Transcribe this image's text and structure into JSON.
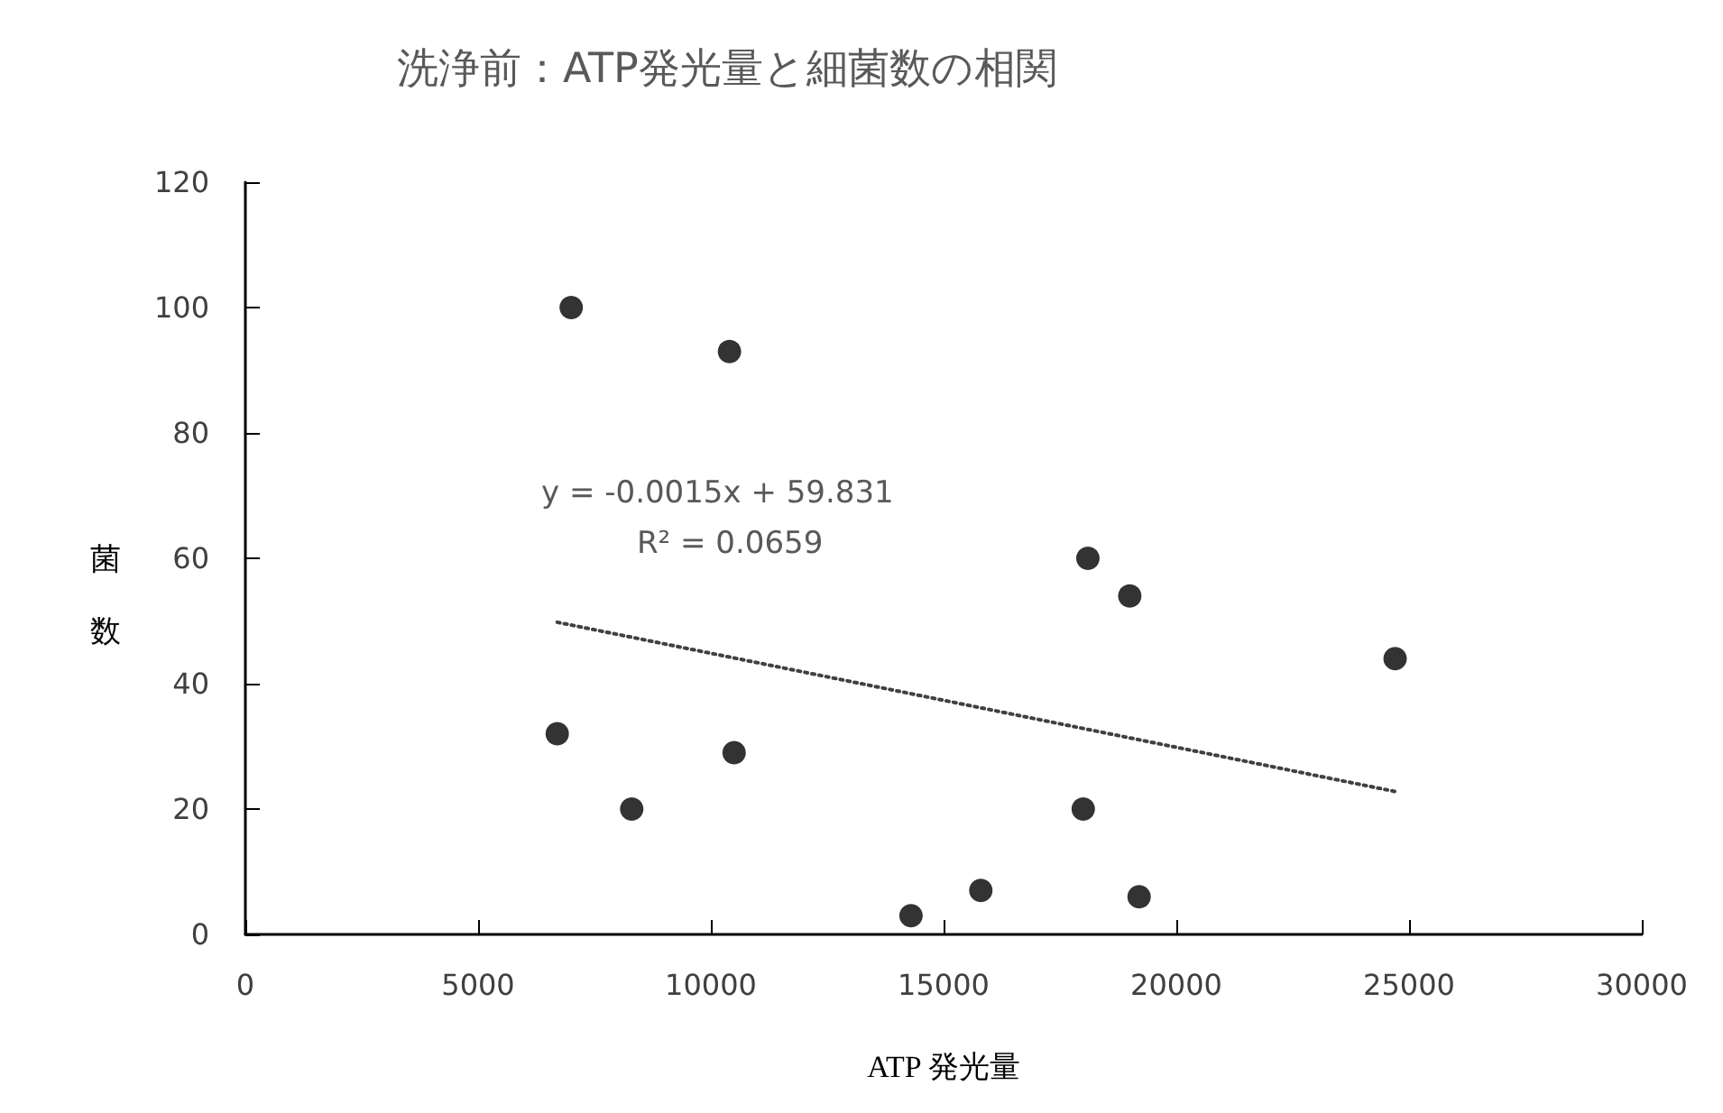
{
  "chart_data": {
    "type": "scatter",
    "title": "洗浄前：ATP発光量と細菌数の相関",
    "xlabel": "ATP 発光量",
    "ylabel": "菌数",
    "annotations": [
      "y = -0.0015x + 59.831",
      "R² = 0.0659"
    ],
    "x": [
      7000,
      10400,
      6700,
      8300,
      10500,
      14300,
      15800,
      18100,
      19000,
      24700,
      18000,
      19200
    ],
    "series": [
      {
        "color": "#000000",
        "marker": "circle",
        "values": [
          100,
          93,
          32,
          20,
          29,
          3,
          7,
          60,
          54,
          44,
          20,
          6
        ]
      },
      {
        "type": "line",
        "color": "#404040",
        "line_style": "dotted",
        "marker": "none",
        "x": [
          6700,
          24700
        ],
        "values": [
          49.8,
          22.8
        ]
      }
    ],
    "xlim": [
      0,
      30000
    ],
    "xticks": [
      0,
      5000,
      10000,
      15000,
      20000,
      25000,
      30000
    ],
    "ylim": [
      0,
      120
    ],
    "yticks": [
      0,
      20,
      40,
      60,
      80,
      100,
      120
    ],
    "grid": false
  }
}
